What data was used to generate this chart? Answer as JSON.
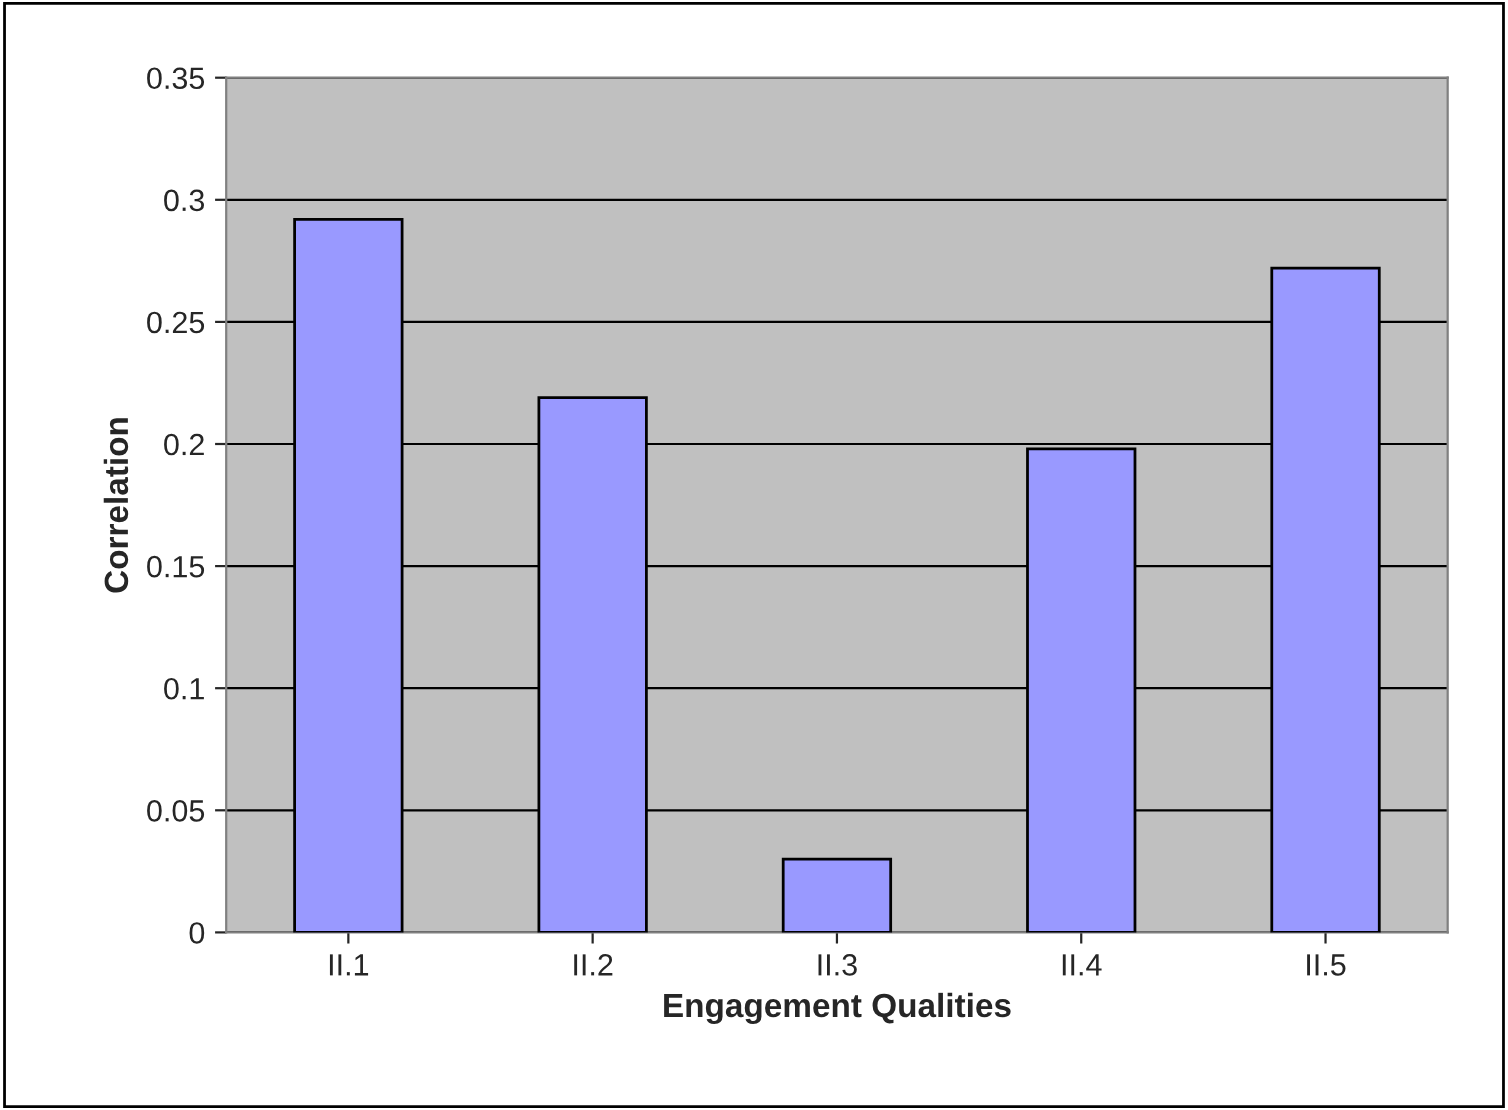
{
  "chart_data": {
    "type": "bar",
    "xlabel": "Engagement Qualities",
    "ylabel": "Correlation",
    "categories": [
      "II.1",
      "II.2",
      "II.3",
      "II.4",
      "II.5"
    ],
    "values": [
      0.292,
      0.219,
      0.03,
      0.198,
      0.272
    ],
    "color": "#9999ff",
    "ylim": [
      0,
      0.35
    ],
    "yticks": [
      0,
      0.05,
      0.1,
      0.15,
      0.2,
      0.25,
      0.3,
      0.35
    ],
    "grid": "y",
    "legend": false
  }
}
